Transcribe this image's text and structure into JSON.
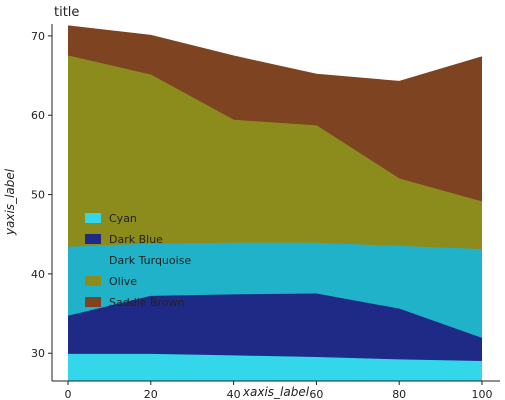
{
  "chart_data": {
    "type": "area",
    "title": "title",
    "xlabel": "xaxis_label",
    "ylabel": "yaxis_label",
    "xlim": [
      0,
      100
    ],
    "ylim": [
      26.5,
      71.5
    ],
    "xticks": [
      0,
      20,
      40,
      60,
      80,
      100
    ],
    "yticks": [
      30,
      40,
      50,
      60,
      70
    ],
    "grid": false,
    "legend_position": "center-left",
    "x": [
      0,
      20,
      40,
      60,
      80,
      100
    ],
    "series": [
      {
        "name": "Cyan",
        "color": "#33D7E9",
        "values": [
          29.8,
          29.8,
          29.6,
          29.4,
          29.1,
          28.9
        ]
      },
      {
        "name": "Dark Blue",
        "color": "#1F2A87",
        "values": [
          34.6,
          37.1,
          37.3,
          37.4,
          35.5,
          31.8
        ]
      },
      {
        "name": "Dark Turquoise",
        "color": "#20B2C8",
        "values": [
          43.3,
          43.7,
          43.8,
          43.8,
          43.4,
          43.0
        ]
      },
      {
        "name": "Olive",
        "color": "#8C8C1C",
        "values": [
          67.4,
          65.0,
          59.3,
          58.6,
          51.9,
          49.0
        ]
      },
      {
        "name": "Saddle Brown",
        "color": "#7E4320",
        "values": [
          71.2,
          70.0,
          67.4,
          65.1,
          64.2,
          67.3
        ]
      }
    ]
  }
}
